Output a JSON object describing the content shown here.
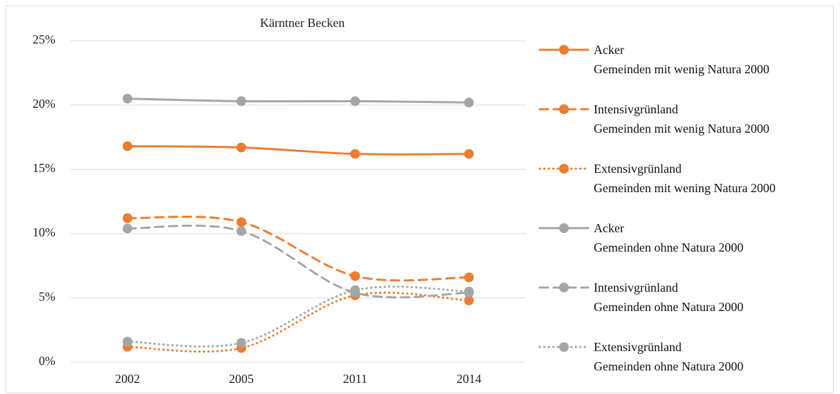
{
  "chart_data": {
    "type": "line",
    "title": "Kärntner Becken",
    "categories": [
      "2002",
      "2005",
      "2011",
      "2014"
    ],
    "ylim": [
      0,
      25
    ],
    "yticks": [
      {
        "value": 0,
        "label": "0%"
      },
      {
        "value": 5,
        "label": "5%"
      },
      {
        "value": 10,
        "label": "10%"
      },
      {
        "value": 15,
        "label": "15%"
      },
      {
        "value": 20,
        "label": "20%"
      },
      {
        "value": 25,
        "label": "25%"
      }
    ],
    "grid": true,
    "smooth": true,
    "legend": "right",
    "series": [
      {
        "name": "Acker\nGemeinden mit wenig Natura 2000",
        "color": "#ED7D31",
        "style": "solid",
        "values": [
          16.8,
          16.7,
          16.2,
          16.2
        ]
      },
      {
        "name": "Intensivgrünland\nGemeinden mit wenig Natura 2000",
        "color": "#ED7D31",
        "style": "dashed",
        "values": [
          11.2,
          10.9,
          6.7,
          6.6
        ]
      },
      {
        "name": "Extensivgrünland\nGemeinden mit wening Natura 2000",
        "color": "#ED7D31",
        "style": "dotted",
        "values": [
          1.2,
          1.1,
          5.2,
          4.8
        ]
      },
      {
        "name": "Acker\nGemeinden ohne Natura 2000",
        "color": "#A5A5A5",
        "style": "solid",
        "values": [
          20.5,
          20.3,
          20.3,
          20.2
        ]
      },
      {
        "name": "Intensivgrünland\nGemeinden ohne Natura 2000",
        "color": "#A5A5A5",
        "style": "dashed",
        "values": [
          10.4,
          10.2,
          5.4,
          5.4
        ]
      },
      {
        "name": "Extensivgrünland\nGemeinden ohne Natura 2000",
        "color": "#A5A5A5",
        "style": "dotted",
        "values": [
          1.6,
          1.5,
          5.6,
          5.5
        ]
      }
    ]
  }
}
